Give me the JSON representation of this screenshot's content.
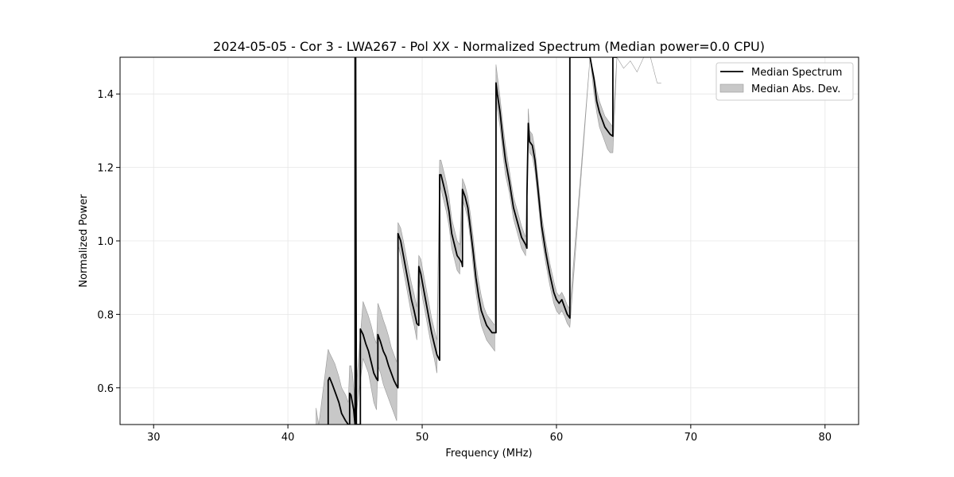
{
  "chart_data": {
    "type": "line",
    "title": "2024-05-05 - Cor 3 - LWA267 - Pol XX - Normalized Spectrum (Median power=0.0 CPU)",
    "xlabel": "Frequency (MHz)",
    "ylabel": "Normalized Power",
    "xlim": [
      27.5,
      82.5
    ],
    "ylim": [
      0.5,
      1.5
    ],
    "xticks": [
      30,
      40,
      50,
      60,
      70,
      80
    ],
    "yticks": [
      0.6,
      0.8,
      1.0,
      1.2,
      1.4
    ],
    "grid": true,
    "legend_position": "top-right",
    "series": [
      {
        "name": "Median Spectrum",
        "color": "#000000",
        "x": [
          43.0,
          43.0,
          43.1,
          43.3,
          43.5,
          43.8,
          44.0,
          44.3,
          44.5,
          44.6,
          44.6,
          44.7,
          44.8,
          44.9,
          44.95,
          45.0,
          45.0,
          45.05,
          45.1,
          45.2,
          45.3,
          45.35,
          45.4,
          45.4,
          45.6,
          45.8,
          46.0,
          46.2,
          46.4,
          46.6,
          46.7,
          46.7,
          46.9,
          47.1,
          47.3,
          47.5,
          47.7,
          47.9,
          48.1,
          48.2,
          48.2,
          48.4,
          48.6,
          48.8,
          49.0,
          49.2,
          49.4,
          49.6,
          49.75,
          49.75,
          49.9,
          50.1,
          50.3,
          50.5,
          50.7,
          50.9,
          51.1,
          51.3,
          51.3,
          51.4,
          51.6,
          51.8,
          52.0,
          52.2,
          52.4,
          52.6,
          52.8,
          52.95,
          53.0,
          53.0,
          53.2,
          53.4,
          53.6,
          53.8,
          54.0,
          54.2,
          54.4,
          54.6,
          54.8,
          55.0,
          55.2,
          55.4,
          55.5,
          55.5,
          55.6,
          55.8,
          56.0,
          56.2,
          56.5,
          56.8,
          57.1,
          57.4,
          57.7,
          57.8,
          57.8,
          57.9,
          58.0,
          58.2,
          58.4,
          58.6,
          58.9,
          59.2,
          59.5,
          59.8,
          60.0,
          60.2,
          60.4,
          60.6,
          60.8,
          60.9,
          61.0,
          61.0,
          61.2,
          61.4,
          61.6,
          61.8,
          62.0,
          62.2,
          62.5,
          62.8,
          63.0,
          63.2,
          63.4,
          63.6,
          63.8,
          64.0,
          64.2,
          64.2,
          64.3,
          64.5
        ],
        "values": [
          0.5,
          0.62,
          0.628,
          0.61,
          0.59,
          0.56,
          0.53,
          0.51,
          0.5,
          0.5,
          0.585,
          0.58,
          0.56,
          0.54,
          0.52,
          0.5,
          1.5,
          1.5,
          0.5,
          0.5,
          0.5,
          0.5,
          0.5,
          0.76,
          0.745,
          0.72,
          0.7,
          0.67,
          0.64,
          0.625,
          0.62,
          0.745,
          0.725,
          0.7,
          0.685,
          0.66,
          0.64,
          0.62,
          0.605,
          0.6,
          1.02,
          1.0,
          0.96,
          0.92,
          0.88,
          0.84,
          0.81,
          0.775,
          0.77,
          0.93,
          0.91,
          0.87,
          0.83,
          0.79,
          0.75,
          0.72,
          0.69,
          0.675,
          1.18,
          1.18,
          1.15,
          1.12,
          1.08,
          1.02,
          0.99,
          0.96,
          0.95,
          0.94,
          0.93,
          1.14,
          1.12,
          1.09,
          1.03,
          0.97,
          0.9,
          0.85,
          0.81,
          0.79,
          0.77,
          0.76,
          0.75,
          0.75,
          0.75,
          1.43,
          1.4,
          1.35,
          1.28,
          1.22,
          1.16,
          1.09,
          1.05,
          1.01,
          0.99,
          0.98,
          1.12,
          1.32,
          1.27,
          1.26,
          1.22,
          1.15,
          1.04,
          0.97,
          0.91,
          0.86,
          0.84,
          0.83,
          0.84,
          0.82,
          0.8,
          0.795,
          0.79,
          1.5,
          1.5,
          1.5,
          1.5,
          1.5,
          1.5,
          1.5,
          1.5,
          1.44,
          1.38,
          1.35,
          1.33,
          1.31,
          1.3,
          1.29,
          1.285,
          1.5,
          1.5,
          1.5
        ]
      }
    ],
    "band": {
      "name": "Median Abs. Dev.",
      "color": "#c8c8c8",
      "edge_color": "#999999",
      "x": [
        42.1,
        42.2,
        42.3,
        43.0,
        43.1,
        43.3,
        43.5,
        43.8,
        44.0,
        44.3,
        44.5,
        44.6,
        44.7,
        44.8,
        44.9,
        45.0,
        45.6,
        45.8,
        46.0,
        46.2,
        46.4,
        46.6,
        46.7,
        46.9,
        47.1,
        47.3,
        47.5,
        47.7,
        47.9,
        48.1,
        48.2,
        48.4,
        48.6,
        48.8,
        49.0,
        49.2,
        49.4,
        49.6,
        49.75,
        49.9,
        50.1,
        50.3,
        50.5,
        50.7,
        50.9,
        51.1,
        51.3,
        51.4,
        51.6,
        51.8,
        52.0,
        52.2,
        52.4,
        52.6,
        52.8,
        53.0,
        53.2,
        53.4,
        53.6,
        53.8,
        54.0,
        54.2,
        54.4,
        54.6,
        54.8,
        55.0,
        55.2,
        55.4,
        55.5,
        55.6,
        55.8,
        56.0,
        56.2,
        56.5,
        56.8,
        57.1,
        57.4,
        57.7,
        57.8,
        57.9,
        58.0,
        58.2,
        58.4,
        58.6,
        58.9,
        59.2,
        59.5,
        59.8,
        60.0,
        60.2,
        60.4,
        60.6,
        60.8,
        61.0,
        62.5,
        62.8,
        63.0,
        63.2,
        63.4,
        63.6,
        63.8,
        64.0,
        64.2,
        64.5,
        65.0,
        65.5,
        66.0,
        66.5,
        67.0,
        67.5,
        67.8
      ],
      "upper": [
        0.545,
        0.52,
        0.5,
        0.705,
        0.695,
        0.68,
        0.665,
        0.63,
        0.6,
        0.58,
        0.56,
        0.66,
        0.66,
        0.64,
        0.6,
        0.56,
        0.835,
        0.815,
        0.795,
        0.77,
        0.74,
        0.72,
        0.83,
        0.81,
        0.785,
        0.765,
        0.74,
        0.71,
        0.69,
        0.67,
        1.05,
        1.035,
        1.0,
        0.96,
        0.92,
        0.885,
        0.855,
        0.82,
        0.96,
        0.95,
        0.91,
        0.87,
        0.83,
        0.79,
        0.76,
        0.73,
        1.22,
        1.22,
        1.19,
        1.16,
        1.12,
        1.06,
        1.03,
        1.0,
        0.99,
        1.17,
        1.15,
        1.12,
        1.07,
        1.01,
        0.94,
        0.89,
        0.85,
        0.82,
        0.8,
        0.79,
        0.78,
        0.77,
        1.48,
        1.45,
        1.39,
        1.32,
        1.26,
        1.19,
        1.12,
        1.08,
        1.04,
        1.01,
        1.15,
        1.36,
        1.3,
        1.29,
        1.25,
        1.18,
        1.07,
        1.0,
        0.94,
        0.89,
        0.86,
        0.85,
        0.86,
        0.845,
        0.825,
        0.815,
        1.5,
        1.45,
        1.41,
        1.38,
        1.36,
        1.34,
        1.33,
        1.32,
        1.31,
        1.5,
        1.47,
        1.49,
        1.46,
        1.5,
        1.5,
        1.43,
        1.43
      ],
      "lower": [
        0.5,
        0.5,
        0.5,
        0.5,
        0.5,
        0.5,
        0.5,
        0.5,
        0.5,
        0.5,
        0.5,
        0.5,
        0.5,
        0.5,
        0.5,
        0.5,
        0.68,
        0.66,
        0.64,
        0.6,
        0.56,
        0.54,
        0.66,
        0.64,
        0.61,
        0.59,
        0.57,
        0.55,
        0.53,
        0.51,
        0.99,
        0.96,
        0.92,
        0.88,
        0.84,
        0.8,
        0.77,
        0.73,
        0.9,
        0.87,
        0.83,
        0.79,
        0.75,
        0.71,
        0.68,
        0.64,
        1.15,
        1.14,
        1.11,
        1.08,
        1.04,
        0.98,
        0.95,
        0.92,
        0.91,
        1.11,
        1.09,
        1.06,
        1.0,
        0.93,
        0.86,
        0.81,
        0.77,
        0.75,
        0.73,
        0.72,
        0.71,
        0.7,
        1.39,
        1.36,
        1.31,
        1.24,
        1.18,
        1.13,
        1.06,
        1.02,
        0.98,
        0.96,
        1.09,
        1.29,
        1.24,
        1.23,
        1.19,
        1.12,
        1.01,
        0.94,
        0.88,
        0.83,
        0.81,
        0.8,
        0.81,
        0.795,
        0.775,
        0.765,
        1.5,
        1.4,
        1.35,
        1.31,
        1.29,
        1.27,
        1.25,
        1.24,
        1.24,
        1.5,
        1.47,
        1.49,
        1.46,
        1.5,
        1.5,
        1.43,
        1.43
      ]
    }
  }
}
